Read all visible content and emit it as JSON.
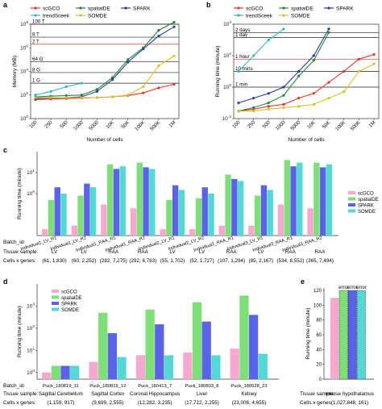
{
  "colors": {
    "scGCO": "#e8352e",
    "spatialDE": "#1f8a3a",
    "SPARK": "#2c3fa0",
    "trendSceek": "#2fb8c8",
    "SOMDE": "#d4c22a",
    "bar_scGCO": "#f7a8cf",
    "bar_spatialDE": "#7ede78",
    "bar_SPARK": "#5a62e6",
    "bar_SOMDE": "#55d8d4"
  },
  "chart_data": [
    {
      "panel": "a",
      "type": "line",
      "xlabel": "Number of cells",
      "ylabel": "Memory (MB)",
      "x": [
        "100",
        "250",
        "500",
        "1000",
        "5000",
        "10K",
        "50K",
        "100K",
        "500K",
        "1M"
      ],
      "yscale": "log",
      "ylim": [
        1,
        100000000
      ],
      "yticks": [
        "10^0",
        "10^2",
        "10^4",
        "10^6",
        "10^8"
      ],
      "reference_lines": [
        {
          "label": "100 T",
          "value": 100000000,
          "color": "#222222"
        },
        {
          "label": "8 T",
          "value": 8000000,
          "color": "#222222"
        },
        {
          "label": "2 T",
          "value": 2000000,
          "color": "#e8352e"
        },
        {
          "label": "64 G",
          "value": 64000,
          "color": "#222222"
        },
        {
          "label": "8 G",
          "value": 8000,
          "color": "#222222"
        },
        {
          "label": "1 G",
          "value": 1000,
          "color": "#222222"
        }
      ],
      "series": [
        {
          "name": "scGCO",
          "values": [
            40,
            45,
            50,
            55,
            60,
            70,
            90,
            150,
            400,
            800
          ]
        },
        {
          "name": "spatialDE",
          "values": [
            70,
            80,
            90,
            100,
            300,
            3000,
            100000,
            1000000,
            30000000,
            150000000
          ]
        },
        {
          "name": "SPARK",
          "values": [
            50,
            55,
            60,
            70,
            200,
            2000,
            60000,
            800000,
            10000000,
            60000000
          ]
        },
        {
          "name": "trendSceek",
          "values": [
            100,
            200,
            500,
            1000,
            null,
            null,
            null,
            null,
            null,
            null
          ]
        },
        {
          "name": "SOMDE",
          "values": [
            60,
            60,
            60,
            60,
            60,
            70,
            100,
            500,
            30000,
            200000
          ]
        }
      ]
    },
    {
      "panel": "b",
      "type": "line",
      "xlabel": "Number of cells",
      "ylabel": "Running time (minute)",
      "x": [
        "100",
        "250",
        "500",
        "1000",
        "5000",
        "10K",
        "50K",
        "100K",
        "500K",
        "1M"
      ],
      "yscale": "log",
      "ylim": [
        0.01,
        10000
      ],
      "yticks": [
        "10^-2",
        "10^0",
        "10^2",
        "10^4"
      ],
      "reference_lines": [
        {
          "label": "2 days",
          "value": 2880,
          "color": "#222222"
        },
        {
          "label": "1 day",
          "value": 1440,
          "color": "#222222"
        },
        {
          "label": "1 hour",
          "value": 60,
          "color": "#e8352e"
        },
        {
          "label": "10 mins",
          "value": 10,
          "color": "#222222"
        },
        {
          "label": "1 min",
          "value": 1,
          "color": "#222222"
        }
      ],
      "series": [
        {
          "name": "scGCO",
          "values": [
            0.03,
            0.04,
            0.06,
            0.08,
            0.2,
            0.4,
            2,
            10,
            60,
            120
          ]
        },
        {
          "name": "spatialDE",
          "values": [
            0.03,
            0.05,
            0.1,
            0.3,
            5,
            50,
            3000,
            null,
            null,
            null
          ]
        },
        {
          "name": "SPARK",
          "values": [
            0.1,
            0.2,
            0.4,
            1,
            10,
            100,
            5000,
            null,
            null,
            null
          ]
        },
        {
          "name": "trendSceek",
          "values": [
            10,
            100,
            1000,
            5000,
            null,
            null,
            null,
            null,
            null,
            null
          ]
        },
        {
          "name": "SOMDE",
          "values": [
            0.03,
            0.03,
            0.04,
            0.05,
            0.06,
            0.08,
            0.2,
            0.5,
            10,
            30
          ]
        }
      ]
    },
    {
      "panel": "c",
      "type": "bar",
      "ylabel": "Running time (minute)",
      "yscale": "log",
      "ylim": [
        0.01,
        100
      ],
      "yticks": [
        "10^0",
        "10^1"
      ],
      "legend": [
        "scGCO",
        "spatialDE",
        "SPARK",
        "SOMDE"
      ],
      "row_labels": {
        "batch": "Batch_id:",
        "tissue": "Tissue sample:",
        "cells": "Cells x genes:"
      },
      "categories": [
        "Individual1_LV_R1",
        "Individual1_LV_R2",
        "Individual1_RAA_R1",
        "Individual1_RAA_R2",
        "Individual2_LV_R1",
        "Individual2_LV_R2",
        "Individual2_RAA_R1",
        "Individual3_LV_R1",
        "Individual3_RAA_R1",
        "Individual3_RAA_R2"
      ],
      "tissues": [
        "LV",
        "LV",
        "RAA",
        "RAA",
        "LV",
        "LV",
        "RAA",
        "LV",
        "RAA",
        "RAA"
      ],
      "cells_x_genes": [
        "(61, 1,830)",
        "(60, 2,252)",
        "(282, 7,275)",
        "(292, 6,763)",
        "(55, 1,702)",
        "(52, 1,727)",
        "(107, 1,294)",
        "(85, 2,167)",
        "(534, 8,552)",
        "(365, 7,494)"
      ],
      "series": [
        {
          "name": "scGCO",
          "values": [
            0.02,
            0.03,
            0.3,
            0.2,
            0.02,
            0.02,
            0.03,
            0.03,
            0.3,
            0.2
          ]
        },
        {
          "name": "spatialDE",
          "values": [
            0.5,
            0.8,
            25,
            30,
            0.5,
            0.6,
            8,
            0.8,
            40,
            30
          ]
        },
        {
          "name": "SPARK",
          "values": [
            2,
            3,
            15,
            18,
            2.5,
            2,
            5,
            2.5,
            20,
            18
          ]
        },
        {
          "name": "SOMDE",
          "values": [
            1,
            2,
            20,
            15,
            1.5,
            1,
            4,
            1.5,
            30,
            25
          ]
        }
      ]
    },
    {
      "panel": "d",
      "type": "bar",
      "ylabel": "Running time (minute)",
      "yscale": "log",
      "ylim": [
        0.5,
        10000
      ],
      "yticks": [
        "10^0",
        "10^1",
        "10^2",
        "10^3"
      ],
      "legend": [
        "scGCO",
        "spatialDE",
        "SPARK",
        "SOMDE"
      ],
      "row_labels": {
        "batch": "Batch_id:",
        "tissue": "Tissue sample:",
        "cells": "Cells x genes:"
      },
      "categories": [
        "Puck_180819_11",
        "Puck_180819_12",
        "Puck_180413_7",
        "Puck_180803_8",
        "Puck_180528_23"
      ],
      "tissues": [
        "Sagittal Cerebellum",
        "Sagittal Cortex",
        "Coronal Hippocampus",
        "Liver",
        "Kidney"
      ],
      "cells_x_genes": [
        "(1,159, 917)",
        "(9,699, 2,555)",
        "(12,282, 3,235)",
        "(17,712, 2,255)",
        "(23,006, 4,655)"
      ],
      "series": [
        {
          "name": "scGCO",
          "values": [
            1,
            3,
            6,
            8,
            12
          ]
        },
        {
          "name": "spatialDE",
          "values": [
            2,
            500,
            700,
            1500,
            3000
          ]
        },
        {
          "name": "SPARK",
          "values": [
            2,
            60,
            150,
            200,
            400
          ]
        },
        {
          "name": "SOMDE",
          "values": [
            2,
            5,
            6,
            6,
            7
          ]
        }
      ]
    },
    {
      "panel": "e",
      "type": "bar",
      "ylabel": "Running time (minute)",
      "ylim": [
        0,
        120
      ],
      "yticks": [
        "0",
        "20",
        "40",
        "60",
        "80",
        "100",
        "120"
      ],
      "tissue_label": "Tissue sample:",
      "cells_label": "Cells x genes:",
      "tissue": "mouse hypothalamus",
      "cells_x_genes": "(1,027,848, 161)",
      "error_label": "error",
      "series": [
        {
          "name": "scGCO",
          "values": [
            110
          ]
        },
        {
          "name": "spatialDE",
          "values": [
            120
          ],
          "error": true
        },
        {
          "name": "SPARK",
          "values": [
            120
          ],
          "error": true
        },
        {
          "name": "SOMDE",
          "values": [
            120
          ],
          "error": true
        }
      ]
    }
  ],
  "panel_letters": [
    "a",
    "b",
    "c",
    "d",
    "e"
  ]
}
